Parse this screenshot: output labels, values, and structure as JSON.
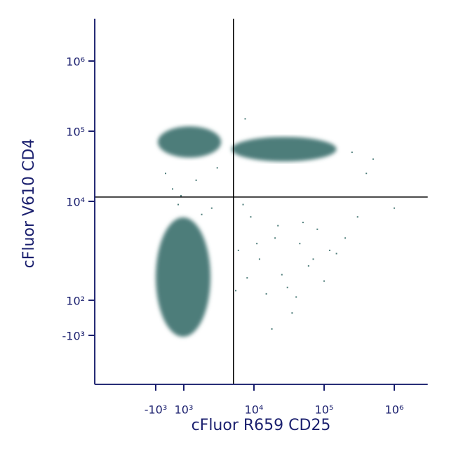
{
  "chart_data": {
    "type": "scatter",
    "x_label": "cFluor R659 CD25",
    "y_label": "cFluor V610 CD4",
    "scale": "biexponential",
    "color": "#4e7d7a",
    "xlim": [
      -7400,
      3000000
    ],
    "ylim": [
      -5000,
      4000000
    ],
    "xticks": [
      {
        "value": -1000,
        "label": "-10³"
      },
      {
        "value": 1000,
        "label": "10³"
      },
      {
        "value": 10000,
        "label": "10⁴"
      },
      {
        "value": 100000,
        "label": "10⁵"
      },
      {
        "value": 1000000,
        "label": "10⁶"
      }
    ],
    "yticks": [
      {
        "value": -1000,
        "label": "-10³"
      },
      {
        "value": 100,
        "label": "10²"
      },
      {
        "value": 10000,
        "label": "10⁴"
      },
      {
        "value": 100000,
        "label": "10⁵"
      },
      {
        "value": 1000000,
        "label": "10⁶"
      }
    ],
    "quadrant_gates": {
      "x": 5100,
      "y": 11500
    },
    "populations": [
      {
        "x": [
          -850,
          3400
        ],
        "y": [
          42000,
          117000
        ]
      },
      {
        "x": [
          -1000,
          2400
        ],
        "y": [
          -1050,
          5900
        ]
      },
      {
        "x": [
          4800,
          150000
        ],
        "y": [
          37000,
          83000
        ]
      }
    ],
    "series": [
      {
        "x": [
          6000,
          8000,
          12000,
          20000,
          30000,
          45000,
          60000,
          80000,
          100000,
          150000,
          200000,
          9000,
          15000,
          25000,
          40000,
          70000,
          5500,
          7000,
          300000,
          500000,
          1000000,
          250000,
          35000,
          18000,
          11000,
          50000,
          120000,
          7500,
          400000,
          22000,
          200,
          1500,
          2500,
          -300,
          800,
          3000,
          1800,
          600
        ],
        "y": [
          2000,
          800,
          1500,
          3000,
          500,
          2500,
          1200,
          4000,
          700,
          1800,
          3000,
          6000,
          300,
          900,
          200,
          1500,
          400,
          9000,
          6000,
          40000,
          8000,
          50000,
          -300,
          -800,
          2500,
          5000,
          2000,
          150000,
          25000,
          4500,
          15000,
          20000,
          8000,
          25000,
          12000,
          30000,
          6500,
          9000
        ]
      }
    ]
  }
}
